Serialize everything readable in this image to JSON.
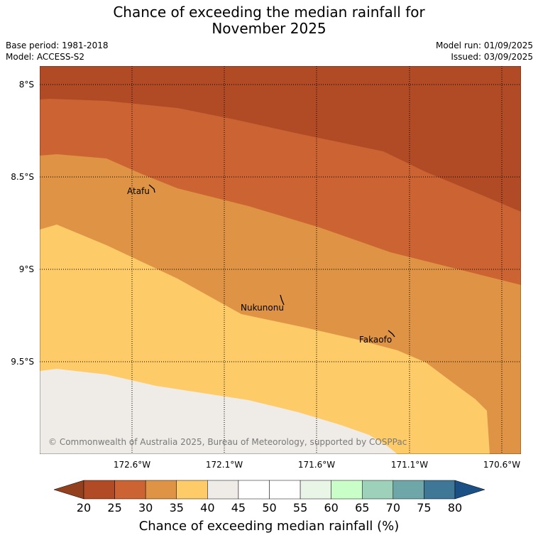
{
  "title_line1": "Chance of exceeding the median rainfall for",
  "title_line2": "November 2025",
  "base_period": "Base period: 1981-2018",
  "model": "Model: ACCESS-S2",
  "model_run": "Model run: 01/09/2025",
  "issued": "Issued: 03/09/2025",
  "lat_labels": [
    "8°S",
    "8.5°S",
    "9°S",
    "9.5°S"
  ],
  "lon_labels": [
    "172.6°W",
    "172.1°W",
    "171.6°W",
    "171.1°W",
    "170.6°W"
  ],
  "places": [
    {
      "name": "Atafu"
    },
    {
      "name": "Nukunonu"
    },
    {
      "name": "Fakaofo"
    }
  ],
  "copyright": "© Commonwealth of Australia 2025, Bureau of Meteorology, supported by COSPPac",
  "colorbar": {
    "title": "Chance of exceeding median rainfall (%)",
    "ticks": [
      "20",
      "25",
      "30",
      "35",
      "40",
      "45",
      "50",
      "55",
      "60",
      "65",
      "70",
      "75",
      "80"
    ],
    "colors": [
      "#b04b26",
      "#cb6432",
      "#df9445",
      "#fecb69",
      "#efebe6",
      "#ffffff",
      "#ffffff",
      "#e9f5e7",
      "#c9fec9",
      "#9dd1b9",
      "#6fa7a9",
      "#3f7797"
    ],
    "under_color": "#93401f",
    "over_color": "#1a5084"
  },
  "category_colors": {
    "20-25": "#b04b26",
    "25-30": "#cb6432",
    "30-35": "#df9445",
    "35-40": "#fecb69",
    "40-45": "#efebe6"
  }
}
